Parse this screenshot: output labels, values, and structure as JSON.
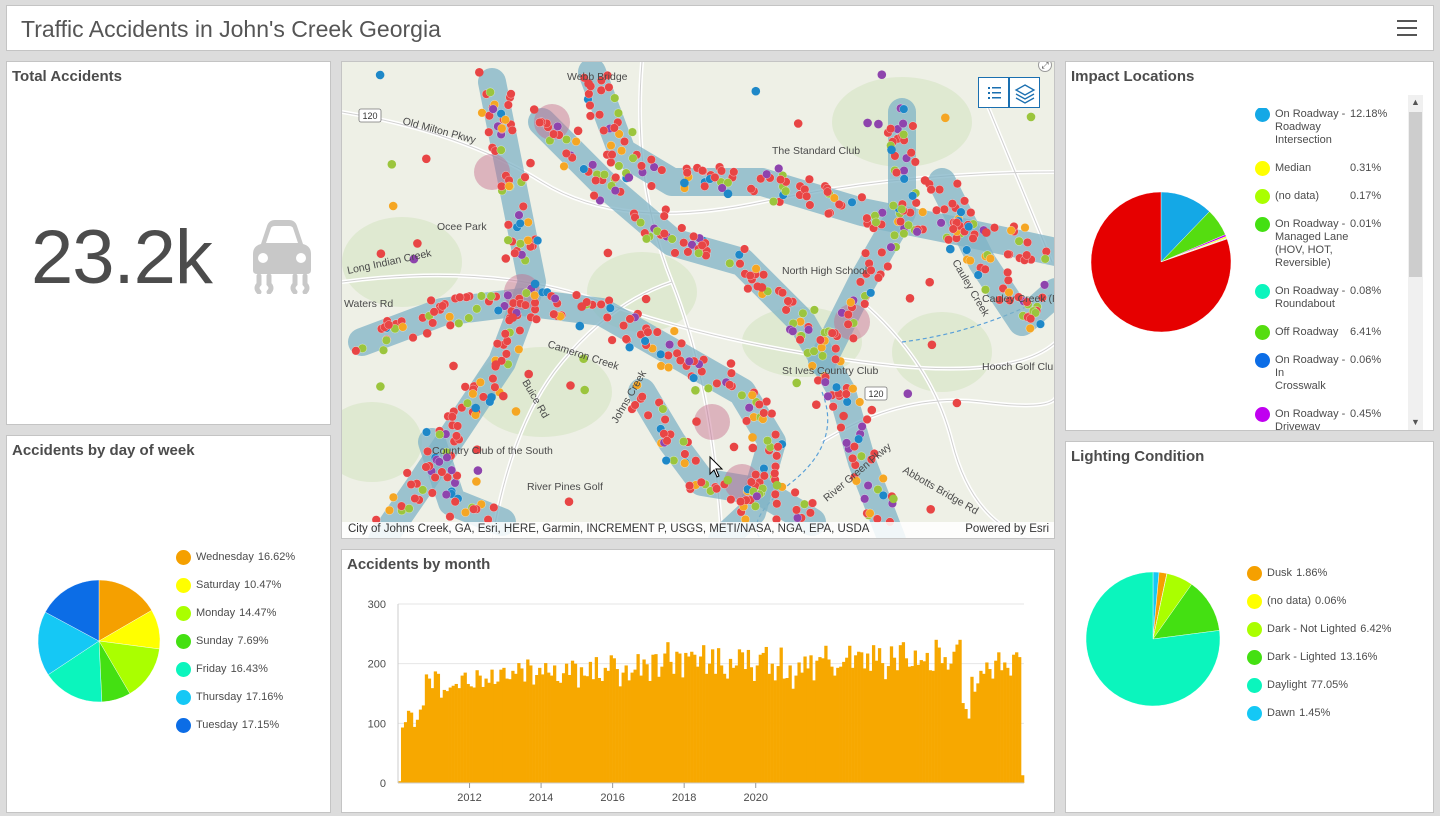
{
  "header": {
    "title": "Traffic Accidents in John's Creek Georgia"
  },
  "total": {
    "title": "Total Accidents",
    "value": "23.2k",
    "icon": "car-icon"
  },
  "dow": {
    "title": "Accidents by day of week",
    "chart_data": {
      "type": "pie",
      "categories": [
        "Wednesday",
        "Saturday",
        "Monday",
        "Sunday",
        "Friday",
        "Thursday",
        "Tuesday"
      ],
      "values": [
        16.62,
        10.47,
        14.47,
        7.69,
        16.43,
        17.16,
        17.15
      ],
      "labels": [
        "16.62%",
        "10.47%",
        "14.47%",
        "7.69%",
        "16.43%",
        "17.16%",
        "17.15%"
      ],
      "colors": [
        "#f5a000",
        "#ffff00",
        "#aaff00",
        "#44e012",
        "#0bf5bd",
        "#15c8f5",
        "#0c6de6"
      ],
      "legend": "right"
    }
  },
  "map": {
    "labels": [
      "Webb Bridge",
      "Old Milton Pkwy",
      "The Standard Club",
      "Ocee Park",
      "Long Indian Creek",
      "North High School",
      "Cauley Creek",
      "Cauley Creek (Future Park)",
      "Cameron Creek",
      "St Ives Country Club",
      "Hooch Golf Club",
      "Country Club of the South",
      "River Pines Golf",
      "Johns Creek",
      "Abbotts Bridge Rd",
      "River Green Pkwy",
      "Waters Rd",
      "Buice Rd"
    ],
    "route_shields": [
      "120",
      "120"
    ],
    "attribution": "City of Johns Creek, GA, Esri, HERE, Garmin, INCREMENT P, USGS, METI/NASA, NGA, EPA, USDA",
    "powered": "Powered by Esri",
    "accent": "#1a6fb0"
  },
  "month": {
    "title": "Accidents by month",
    "chart_data": {
      "type": "bar",
      "color": "#f7a800",
      "ylim": [
        0,
        300
      ],
      "yticks": [
        "0",
        "100",
        "200",
        "300"
      ],
      "xticks": [
        "2012",
        "2014",
        "2016",
        "2018",
        "2020"
      ],
      "x_start": "2010-01",
      "values": [
        3,
        93,
        102,
        121,
        118,
        94,
        106,
        123,
        130,
        182,
        175,
        159,
        187,
        183,
        143,
        156,
        154,
        160,
        163,
        166,
        159,
        180,
        185,
        166,
        162,
        160,
        189,
        180,
        161,
        175,
        168,
        190,
        166,
        170,
        190,
        193,
        175,
        174,
        188,
        183,
        201,
        192,
        170,
        207,
        197,
        165,
        181,
        193,
        182,
        201,
        185,
        180,
        197,
        171,
        168,
        184,
        200,
        181,
        205,
        200,
        160,
        194,
        180,
        179,
        203,
        174,
        211,
        176,
        171,
        193,
        188,
        214,
        209,
        191,
        162,
        185,
        197,
        172,
        185,
        190,
        216,
        180,
        207,
        199,
        171,
        215,
        216,
        178,
        195,
        217,
        236,
        203,
        183,
        220,
        217,
        177,
        218,
        212,
        220,
        215,
        195,
        212,
        231,
        183,
        200,
        224,
        183,
        226,
        197,
        183,
        175,
        208,
        193,
        197,
        224,
        219,
        191,
        223,
        194,
        171,
        197,
        215,
        218,
        228,
        183,
        200,
        172,
        196,
        227,
        175,
        176,
        197,
        158,
        180,
        202,
        185,
        212,
        192,
        214,
        172,
        205,
        211,
        209,
        230,
        207,
        195,
        180,
        193,
        195,
        203,
        210,
        230,
        193,
        214,
        220,
        219,
        192,
        217,
        188,
        231,
        205,
        226,
        201,
        174,
        196,
        229,
        210,
        189,
        231,
        236,
        209,
        195,
        196,
        222,
        198,
        206,
        204,
        218,
        189,
        188,
        240,
        227,
        201,
        211,
        190,
        200,
        220,
        232,
        240,
        134,
        124,
        108,
        178,
        153,
        167,
        188,
        183,
        202,
        191,
        175,
        205,
        219,
        189,
        202,
        193,
        180,
        215,
        219,
        211,
        13
      ]
    }
  },
  "impact": {
    "title": "Impact Locations",
    "chart_data": {
      "type": "pie",
      "categories": [
        "On Roadway - Roadway Intersection",
        "Median",
        "(no data)",
        "On Roadway - Managed Lane (HOV, HOT, Reversible)",
        "On Roadway - Roundabout",
        "Off Roadway",
        "On Roadway - In Crosswalk",
        "On Roadway - Driveway Intersection"
      ],
      "display_lines": [
        [
          "On Roadway -",
          "Roadway",
          "Intersection"
        ],
        [
          "Median"
        ],
        [
          "(no data)"
        ],
        [
          "On Roadway -",
          "Managed Lane",
          "(HOV, HOT,",
          "Reversible)"
        ],
        [
          "On Roadway -",
          "Roundabout"
        ],
        [
          "Off Roadway"
        ],
        [
          "On Roadway - In",
          "Crosswalk"
        ],
        [
          "On Roadway -",
          "Driveway",
          "Intersection"
        ]
      ],
      "values": [
        12.18,
        0.31,
        0.17,
        0.01,
        0.08,
        6.41,
        0.06,
        0.45
      ],
      "labels": [
        "12.18%",
        "0.31%",
        "0.17%",
        "0.01%",
        "0.08%",
        "6.41%",
        "0.06%",
        "0.45%"
      ],
      "colors": [
        "#14a8e6",
        "#ffff00",
        "#aaff00",
        "#44e012",
        "#0bf5bd",
        "#55dd10",
        "#0c6de6",
        "#c000f0"
      ],
      "pie_extra": {
        "color": "#e60000",
        "value": 80.3
      },
      "legend": "right"
    }
  },
  "lighting": {
    "title": "Lighting Condition",
    "chart_data": {
      "type": "pie",
      "categories": [
        "Dusk",
        "(no data)",
        "Dark - Not Lighted",
        "Dark - Lighted",
        "Daylight",
        "Dawn"
      ],
      "values": [
        1.86,
        0.06,
        6.42,
        13.16,
        77.05,
        1.45
      ],
      "labels": [
        "1.86%",
        "0.06%",
        "6.42%",
        "13.16%",
        "77.05%",
        "1.45%"
      ],
      "colors": [
        "#f5a000",
        "#ffff00",
        "#aaff00",
        "#44e012",
        "#0bf5bd",
        "#15c8f5"
      ],
      "legend": "right"
    }
  }
}
